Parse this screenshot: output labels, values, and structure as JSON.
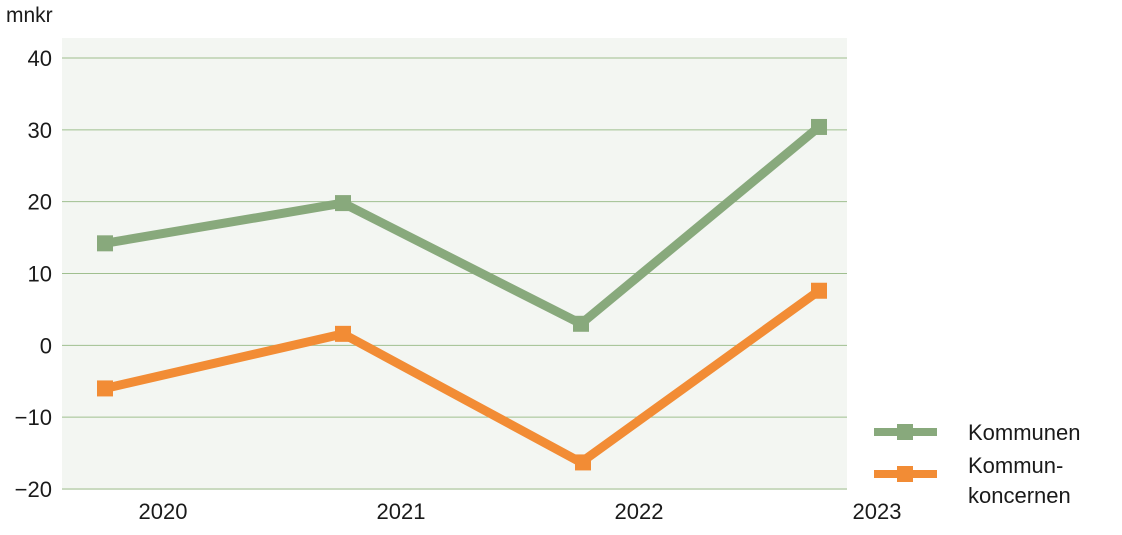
{
  "chart_data": {
    "type": "line",
    "unit_label": "mnkr",
    "categories": [
      "2020",
      "2021",
      "2022",
      "2023"
    ],
    "ylim": [
      -20,
      40
    ],
    "yticks": [
      40,
      30,
      20,
      10,
      0,
      -10,
      -20
    ],
    "ytick_labels": [
      "40",
      "30",
      "20",
      "10",
      "0",
      "−10",
      "−20"
    ],
    "grid": true,
    "legend_position": "bottom-right",
    "background_color": "#f3f6f2",
    "grid_color": "#9fbf8f",
    "series": [
      {
        "name": "Kommunen",
        "label_lines": [
          "Kommunen"
        ],
        "color": "#88a97c",
        "values": [
          14.2,
          19.8,
          3.0,
          30.4
        ]
      },
      {
        "name": "Kommun-koncernen",
        "label_lines": [
          "Kommun-",
          "koncernen"
        ],
        "color": "#f28c35",
        "values": [
          -6.0,
          1.6,
          -16.3,
          7.6
        ]
      }
    ]
  }
}
